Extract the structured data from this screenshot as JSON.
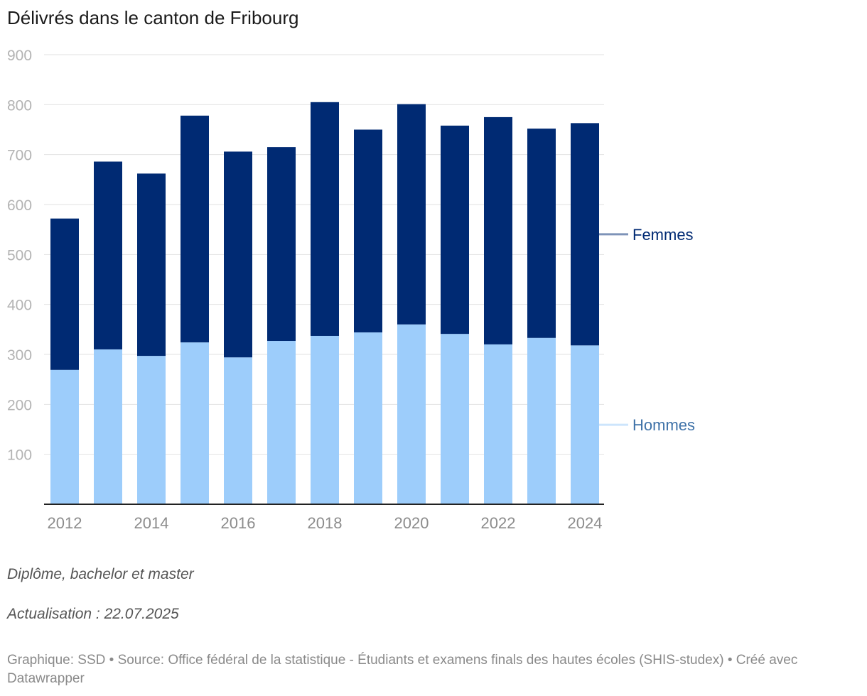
{
  "chart_data": {
    "type": "bar",
    "stacked": true,
    "title": "Délivrés dans le canton de Fribourg",
    "categories": [
      "2012",
      "2013",
      "2014",
      "2015",
      "2016",
      "2017",
      "2018",
      "2019",
      "2020",
      "2021",
      "2022",
      "2023",
      "2024"
    ],
    "x_tick_labels": [
      "2012",
      "",
      "2014",
      "",
      "2016",
      "",
      "2018",
      "",
      "2020",
      "",
      "2022",
      "",
      "2024"
    ],
    "series": [
      {
        "name": "Hommes",
        "color": "#9dcdfb",
        "label_color": "#3f72a8",
        "values": [
          269,
          310,
          297,
          324,
          294,
          327,
          337,
          344,
          360,
          341,
          320,
          333,
          318
        ]
      },
      {
        "name": "Femmes",
        "color": "#002a73",
        "label_color": "#002a73",
        "values": [
          303,
          376,
          365,
          454,
          412,
          388,
          468,
          406,
          441,
          417,
          455,
          419,
          445
        ]
      }
    ],
    "ylim": [
      0,
      900
    ],
    "yticks": [
      "100",
      "200",
      "300",
      "400",
      "500",
      "600",
      "700",
      "800",
      "900"
    ],
    "grid": true,
    "legend": "right, inline labels",
    "xlabel": "",
    "ylabel": ""
  },
  "notes": {
    "line1": "Diplôme, bachelor et master",
    "line2": "Actualisation : 22.07.2025"
  },
  "footer": {
    "text": "Graphique: SSD • Source: Office fédéral de la statistique - Étudiants et examens finals des hautes écoles (SHIS-studex) • Créé avec Datawrapper"
  },
  "colors": {
    "grid": "#e2e2e2",
    "axis": "#222222",
    "tick_text": "#b3b3b3",
    "x_tick_text": "#8c8c8c"
  }
}
